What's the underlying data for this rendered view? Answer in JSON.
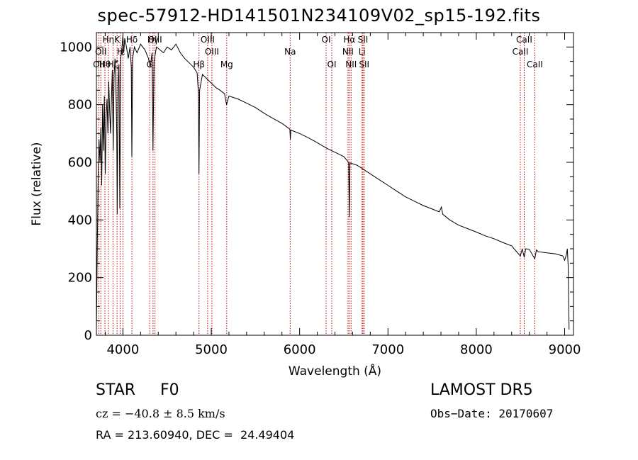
{
  "chart_data": {
    "type": "line",
    "title": "spec-57912-HD141501N234109V02_sp15-192.fits",
    "xlabel": "Wavelength (Å)",
    "ylabel": "Flux (relative)",
    "xlim": [
      3700,
      9100
    ],
    "ylim": [
      0,
      1050
    ],
    "x_ticks": [
      4000,
      5000,
      6000,
      7000,
      8000,
      9000
    ],
    "y_ticks": [
      0,
      200,
      400,
      600,
      800,
      1000
    ],
    "grid": false,
    "series": [
      {
        "points": [
          [
            3700,
            20
          ],
          [
            3710,
            300
          ],
          [
            3720,
            560
          ],
          [
            3730,
            680
          ],
          [
            3740,
            600
          ],
          [
            3750,
            720
          ],
          [
            3760,
            520
          ],
          [
            3770,
            800
          ],
          [
            3780,
            640
          ],
          [
            3790,
            830
          ],
          [
            3800,
            560
          ],
          [
            3810,
            760
          ],
          [
            3820,
            820
          ],
          [
            3830,
            700
          ],
          [
            3840,
            880
          ],
          [
            3850,
            780
          ],
          [
            3860,
            700
          ],
          [
            3870,
            820
          ],
          [
            3880,
            920
          ],
          [
            3890,
            640
          ],
          [
            3900,
            900
          ],
          [
            3910,
            960
          ],
          [
            3920,
            880
          ],
          [
            3930,
            700
          ],
          [
            3935,
            420
          ],
          [
            3945,
            860
          ],
          [
            3955,
            940
          ],
          [
            3965,
            440
          ],
          [
            3975,
            960
          ],
          [
            3990,
            1000
          ],
          [
            4000,
            1040
          ],
          [
            4010,
            980
          ],
          [
            4020,
            1030
          ],
          [
            4040,
            1000
          ],
          [
            4060,
            960
          ],
          [
            4080,
            1000
          ],
          [
            4095,
            930
          ],
          [
            4101,
            620
          ],
          [
            4110,
            960
          ],
          [
            4130,
            1000
          ],
          [
            4160,
            980
          ],
          [
            4200,
            1010
          ],
          [
            4250,
            990
          ],
          [
            4290,
            960
          ],
          [
            4310,
            930
          ],
          [
            4330,
            980
          ],
          [
            4340,
            640
          ],
          [
            4352,
            950
          ],
          [
            4380,
            1000
          ],
          [
            4420,
            990
          ],
          [
            4460,
            980
          ],
          [
            4500,
            1000
          ],
          [
            4550,
            990
          ],
          [
            4600,
            1010
          ],
          [
            4650,
            980
          ],
          [
            4700,
            960
          ],
          [
            4750,
            945
          ],
          [
            4800,
            930
          ],
          [
            4840,
            910
          ],
          [
            4855,
            840
          ],
          [
            4861,
            560
          ],
          [
            4868,
            850
          ],
          [
            4900,
            905
          ],
          [
            4950,
            890
          ],
          [
            5000,
            875
          ],
          [
            5050,
            860
          ],
          [
            5100,
            850
          ],
          [
            5150,
            838
          ],
          [
            5173,
            800
          ],
          [
            5200,
            830
          ],
          [
            5300,
            820
          ],
          [
            5400,
            805
          ],
          [
            5500,
            790
          ],
          [
            5600,
            770
          ],
          [
            5700,
            752
          ],
          [
            5800,
            735
          ],
          [
            5890,
            715
          ],
          [
            5895,
            680
          ],
          [
            5900,
            712
          ],
          [
            6000,
            700
          ],
          [
            6100,
            685
          ],
          [
            6200,
            668
          ],
          [
            6300,
            650
          ],
          [
            6400,
            635
          ],
          [
            6500,
            620
          ],
          [
            6555,
            600
          ],
          [
            6563,
            410
          ],
          [
            6570,
            598
          ],
          [
            6650,
            590
          ],
          [
            6700,
            580
          ],
          [
            6800,
            560
          ],
          [
            6900,
            540
          ],
          [
            7000,
            520
          ],
          [
            7100,
            500
          ],
          [
            7200,
            480
          ],
          [
            7300,
            465
          ],
          [
            7400,
            450
          ],
          [
            7500,
            438
          ],
          [
            7580,
            428
          ],
          [
            7605,
            445
          ],
          [
            7620,
            420
          ],
          [
            7700,
            400
          ],
          [
            7800,
            382
          ],
          [
            7900,
            370
          ],
          [
            8000,
            358
          ],
          [
            8100,
            345
          ],
          [
            8200,
            335
          ],
          [
            8300,
            322
          ],
          [
            8400,
            310
          ],
          [
            8498,
            275
          ],
          [
            8520,
            300
          ],
          [
            8542,
            270
          ],
          [
            8560,
            300
          ],
          [
            8600,
            298
          ],
          [
            8662,
            265
          ],
          [
            8680,
            296
          ],
          [
            8700,
            290
          ],
          [
            8800,
            286
          ],
          [
            8900,
            282
          ],
          [
            8980,
            275
          ],
          [
            9000,
            260
          ],
          [
            9020,
            280
          ],
          [
            9030,
            300
          ],
          [
            9040,
            240
          ],
          [
            9050,
            20
          ]
        ]
      }
    ],
    "line_markers": [
      {
        "wavelength": 3727,
        "label": "OII",
        "row": 2
      },
      {
        "wavelength": 3750,
        "label": "OII",
        "row": 1
      },
      {
        "wavelength": 3797,
        "label": "Hθ",
        "row": 2
      },
      {
        "wavelength": 3835,
        "label": "Hη",
        "row": 0
      },
      {
        "wavelength": 3889,
        "label": "Hζ",
        "row": 2
      },
      {
        "wavelength": 3934,
        "label": "K",
        "row": 0
      },
      {
        "wavelength": 3969,
        "label": "H",
        "row": 1
      },
      {
        "wavelength": 4000,
        "label": "ε",
        "row": 1
      },
      {
        "wavelength": 4102,
        "label": "Hδ",
        "row": 0
      },
      {
        "wavelength": 4304,
        "label": "G",
        "row": 2
      },
      {
        "wavelength": 4341,
        "label": "Hγ",
        "row": 0
      },
      {
        "wavelength": 4363,
        "label": "OIII",
        "row": 0
      },
      {
        "wavelength": 4861,
        "label": "Hβ",
        "row": 2
      },
      {
        "wavelength": 4959,
        "label": "OIII",
        "row": 0
      },
      {
        "wavelength": 5007,
        "label": "OIII",
        "row": 1
      },
      {
        "wavelength": 5175,
        "label": "Mg",
        "row": 2
      },
      {
        "wavelength": 5893,
        "label": "Na",
        "row": 1
      },
      {
        "wavelength": 6300,
        "label": "OI",
        "row": 0
      },
      {
        "wavelength": 6364,
        "label": "OI",
        "row": 2
      },
      {
        "wavelength": 6548,
        "label": "NII",
        "row": 1
      },
      {
        "wavelength": 6563,
        "label": "Hα",
        "row": 0
      },
      {
        "wavelength": 6583,
        "label": "NII",
        "row": 2
      },
      {
        "wavelength": 6707,
        "label": "Li",
        "row": 1
      },
      {
        "wavelength": 6717,
        "label": "SII",
        "row": 0
      },
      {
        "wavelength": 6731,
        "label": "SII",
        "row": 2
      },
      {
        "wavelength": 8498,
        "label": "CaII",
        "row": 1
      },
      {
        "wavelength": 8542,
        "label": "CaII",
        "row": 0
      },
      {
        "wavelength": 8662,
        "label": "CaII",
        "row": 2
      }
    ],
    "marker_color": "#cc0000",
    "line_color": "#000000"
  },
  "info": {
    "object": "STAR     F0",
    "survey": "LAMOST DR5",
    "cz": "cz = −40.8 ± 8.5 km/s",
    "obs_date": "Obs−Date: 20170607",
    "radec": "RA = 213.60940, DEC =  24.49404"
  }
}
